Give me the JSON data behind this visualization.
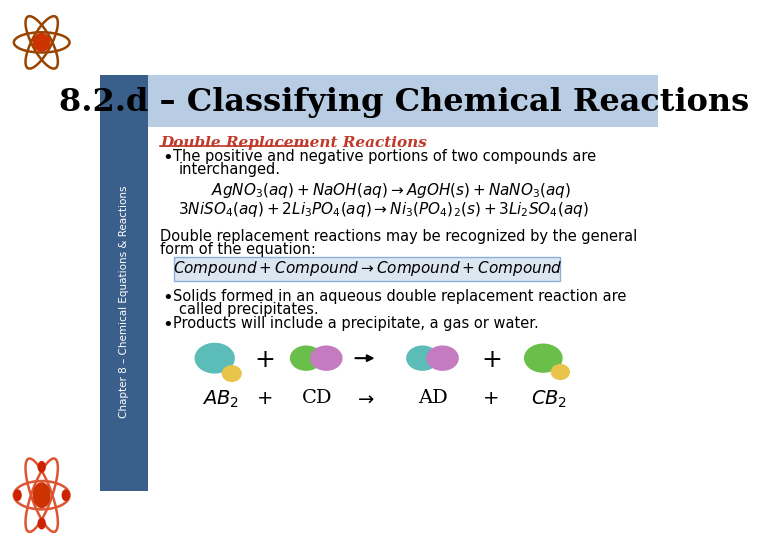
{
  "title": "8.2.d – Classifying Chemical Reactions",
  "bg_color": "#FFFFFF",
  "sidebar_color": "#3a5f8a",
  "header_bg": "#b8cce4",
  "section_title": "Double Replacement Reactions",
  "section_title_color": "#c0392b",
  "general_eq_bg": "#dce6f1",
  "general_eq_border": "#8bafd8",
  "colors": {
    "teal": "#5bbcb8",
    "yellow": "#e8c44a",
    "green": "#6abf4b",
    "purple": "#c47bbf"
  }
}
